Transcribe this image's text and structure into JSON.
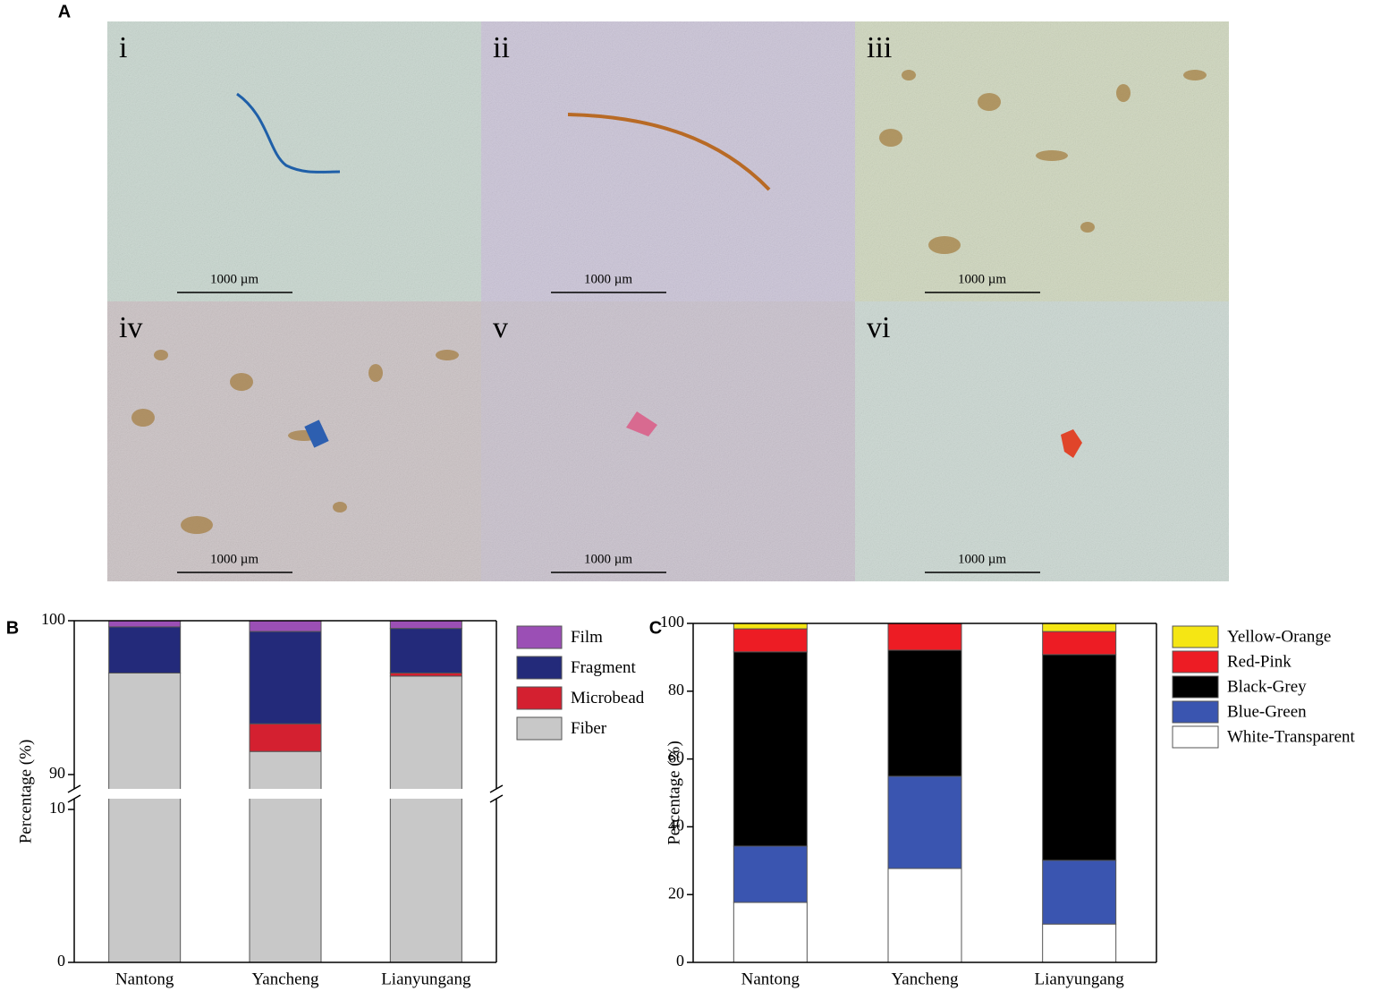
{
  "panel_labels": [
    "A",
    "B",
    "C"
  ],
  "images": [
    {
      "label": "i",
      "scale": "1000 µm"
    },
    {
      "label": "ii",
      "scale": "1000 µm"
    },
    {
      "label": "iii",
      "scale": "1000 µm"
    },
    {
      "label": "iv",
      "scale": "1000 µm"
    },
    {
      "label": "v",
      "scale": "1000 µm"
    },
    {
      "label": "vi",
      "scale": "1000 µm"
    }
  ],
  "chart_data": [
    {
      "type": "stacked_bar",
      "y_label": "Percentage (%)",
      "categories": [
        "Nantong",
        "Yancheng",
        "Lianyungang"
      ],
      "ylim": [
        0,
        100
      ],
      "yticks": [
        0,
        10,
        90,
        100
      ],
      "y_break": [
        10,
        90
      ],
      "series": [
        {
          "name": "Film",
          "color": "#9b4fb5",
          "values": [
            0.4,
            0.7,
            0.5
          ]
        },
        {
          "name": "Fragment",
          "color": "#232a7a",
          "values": [
            3.0,
            6.0,
            2.9
          ]
        },
        {
          "name": "Microbead",
          "color": "#d42030",
          "values": [
            0,
            1.8,
            0.2
          ]
        },
        {
          "name": "Fiber",
          "color": "#c8c8c8",
          "values": [
            96.6,
            91.5,
            96.4
          ]
        }
      ]
    },
    {
      "type": "stacked_bar",
      "y_label": "Percentage (%)",
      "categories": [
        "Nantong",
        "Yancheng",
        "Lianyungang"
      ],
      "ylim": [
        0,
        100
      ],
      "yticks": [
        0,
        20,
        40,
        60,
        80,
        100
      ],
      "series": [
        {
          "name": "Yellow-Orange",
          "color": "#f5e614",
          "values": [
            1.6,
            0,
            2.4
          ]
        },
        {
          "name": "Red-Pink",
          "color": "#ed1c24",
          "values": [
            6.8,
            7.9,
            6.8
          ]
        },
        {
          "name": "Black-Grey",
          "color": "#000000",
          "values": [
            57.3,
            37.2,
            60.7
          ]
        },
        {
          "name": "Blue-Green",
          "color": "#3a55b0",
          "values": [
            16.6,
            27.2,
            18.8
          ]
        },
        {
          "name": "White-Transparent",
          "color": "#ffffff",
          "values": [
            17.7,
            27.7,
            11.3
          ]
        }
      ]
    }
  ]
}
